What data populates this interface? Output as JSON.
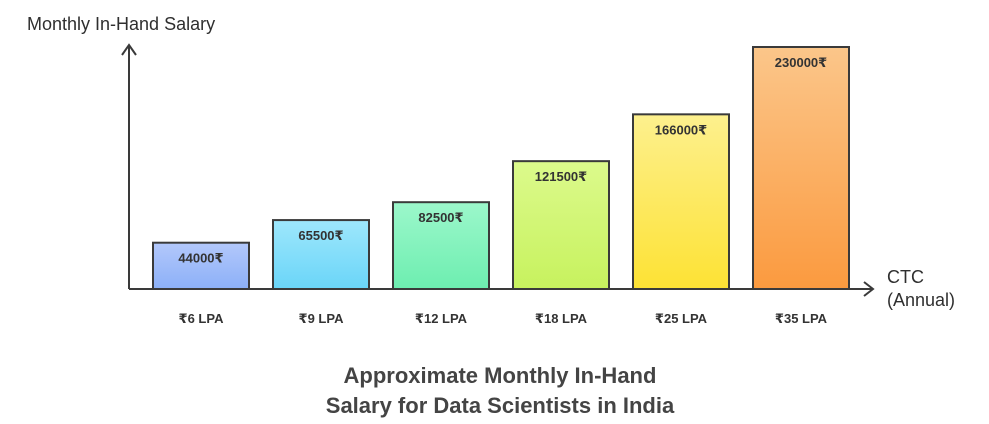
{
  "chart_data": {
    "type": "bar",
    "title_lines": [
      "Approximate Monthly In-Hand",
      "Salary for Data Scientists in India"
    ],
    "ylabel": "Monthly In-Hand Salary",
    "xlabel_lines": [
      "CTC",
      "(Annual)"
    ],
    "categories": [
      "₹6 LPA",
      "₹9 LPA",
      "₹12 LPA",
      "₹18 LPA",
      "₹25 LPA",
      "₹35 LPA"
    ],
    "values": [
      44000,
      65500,
      82500,
      121500,
      166000,
      230000
    ],
    "value_labels": [
      "44000₹",
      "65500₹",
      "82500₹",
      "121500₹",
      "166000₹",
      "230000₹"
    ],
    "ylim": [
      0,
      230000
    ],
    "grid": false,
    "legend": "none",
    "bar_colors": [
      [
        "#b3c8fb",
        "#8cb0f7"
      ],
      [
        "#9ee7fc",
        "#6ad5f8"
      ],
      [
        "#9cf7cb",
        "#6deeb0"
      ],
      [
        "#dcfa8c",
        "#c7f25e"
      ],
      [
        "#fdf08e",
        "#fde234"
      ],
      [
        "#fbc68a",
        "#fb9a3f"
      ]
    ]
  }
}
